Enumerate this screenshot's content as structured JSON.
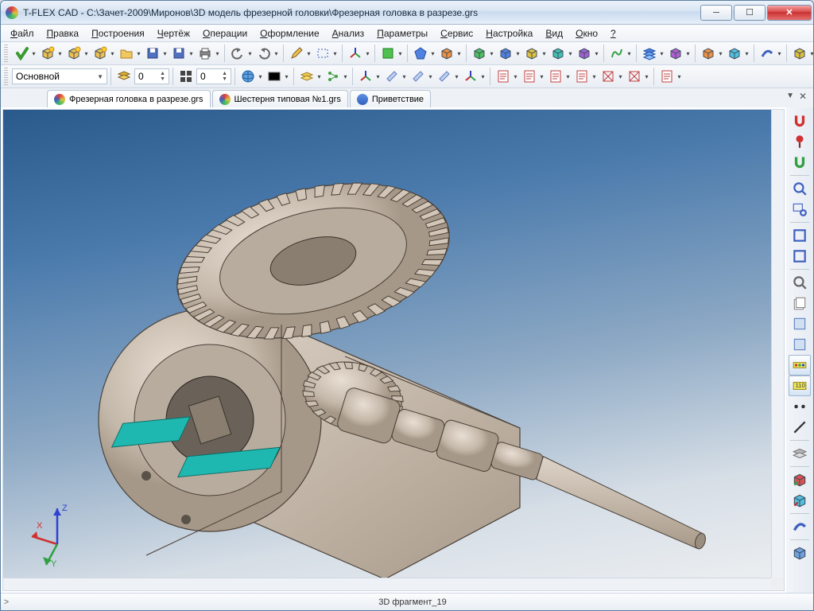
{
  "title": "T-FLEX CAD - C:\\Зачет-2009\\Миронов\\3D модель фрезерной головки\\Фрезерная головка в разрезе.grs",
  "menus": [
    "Файл",
    "Правка",
    "Построения",
    "Чертёж",
    "Операции",
    "Оформление",
    "Анализ",
    "Параметры",
    "Сервис",
    "Настройка",
    "Вид",
    "Окно",
    "?"
  ],
  "layer_dropdown": "Основной",
  "spin1": "0",
  "spin2": "0",
  "tabs": [
    {
      "label": "Фрезерная головка в разрезе.grs",
      "icon": "conic",
      "active": true
    },
    {
      "label": "Шестерня типовая №1.grs",
      "icon": "conic",
      "active": false
    },
    {
      "label": "Приветствие",
      "icon": "flag",
      "active": false
    }
  ],
  "status_left": ">",
  "status_center": "3D фрагмент_19",
  "axes": {
    "x": "X",
    "y": "Y",
    "z": "Z",
    "x_color": "#d03030",
    "y_color": "#30a040",
    "z_color": "#3040d0"
  },
  "colors": {
    "viewport_top": "#2a5a8c",
    "viewport_bottom": "#eef0f2",
    "model_body": "#cbbfb3",
    "model_edge": "#4a4038",
    "model_teal": "#1fb8b0"
  },
  "tb_icons_row1": [
    "check-green",
    "box-new",
    "box-star",
    "box-spark",
    "folder",
    "save",
    "save-dd",
    "print",
    "sep",
    "undo",
    "redo",
    "sep",
    "pencil",
    "rect-sel",
    "sep",
    "axis3d",
    "sep",
    "green-sq",
    "sep",
    "poly-blue",
    "cube-orange",
    "sep",
    "solid-green",
    "solid-blue",
    "solid-yellow",
    "solid-teal",
    "solid-purple",
    "sep",
    "route-green",
    "sep",
    "stack-blue",
    "cube-purple",
    "sep",
    "solid-orange",
    "solid-cyan",
    "sep",
    "swoosh",
    "sep",
    "solid-yellow2"
  ],
  "tb_icons_row2": [
    "globe",
    "color-swatch",
    "sep",
    "layers-yellow",
    "tree-green",
    "sep",
    "axis-small",
    "plane-a",
    "plane-b",
    "plane-c",
    "axis-tiny",
    "sep",
    "page-a",
    "page-b",
    "page-c",
    "page-d",
    "wire-a",
    "wire-b",
    "sep",
    "page-blank"
  ],
  "right_icons": [
    "magnet-red",
    "pin-red",
    "magnet-green",
    "sep",
    "zoom",
    "zoom-rect",
    "sep",
    "frame",
    "frame-alt",
    "sep",
    "search",
    "stack-pages",
    "render-a",
    "render-b",
    "sel-hl",
    "sel-num",
    "dots",
    "line",
    "sep",
    "layers-gray",
    "sep",
    "boolean-red",
    "boolean-cyan",
    "sep",
    "swoosh2",
    "sep",
    "cube-iso"
  ]
}
